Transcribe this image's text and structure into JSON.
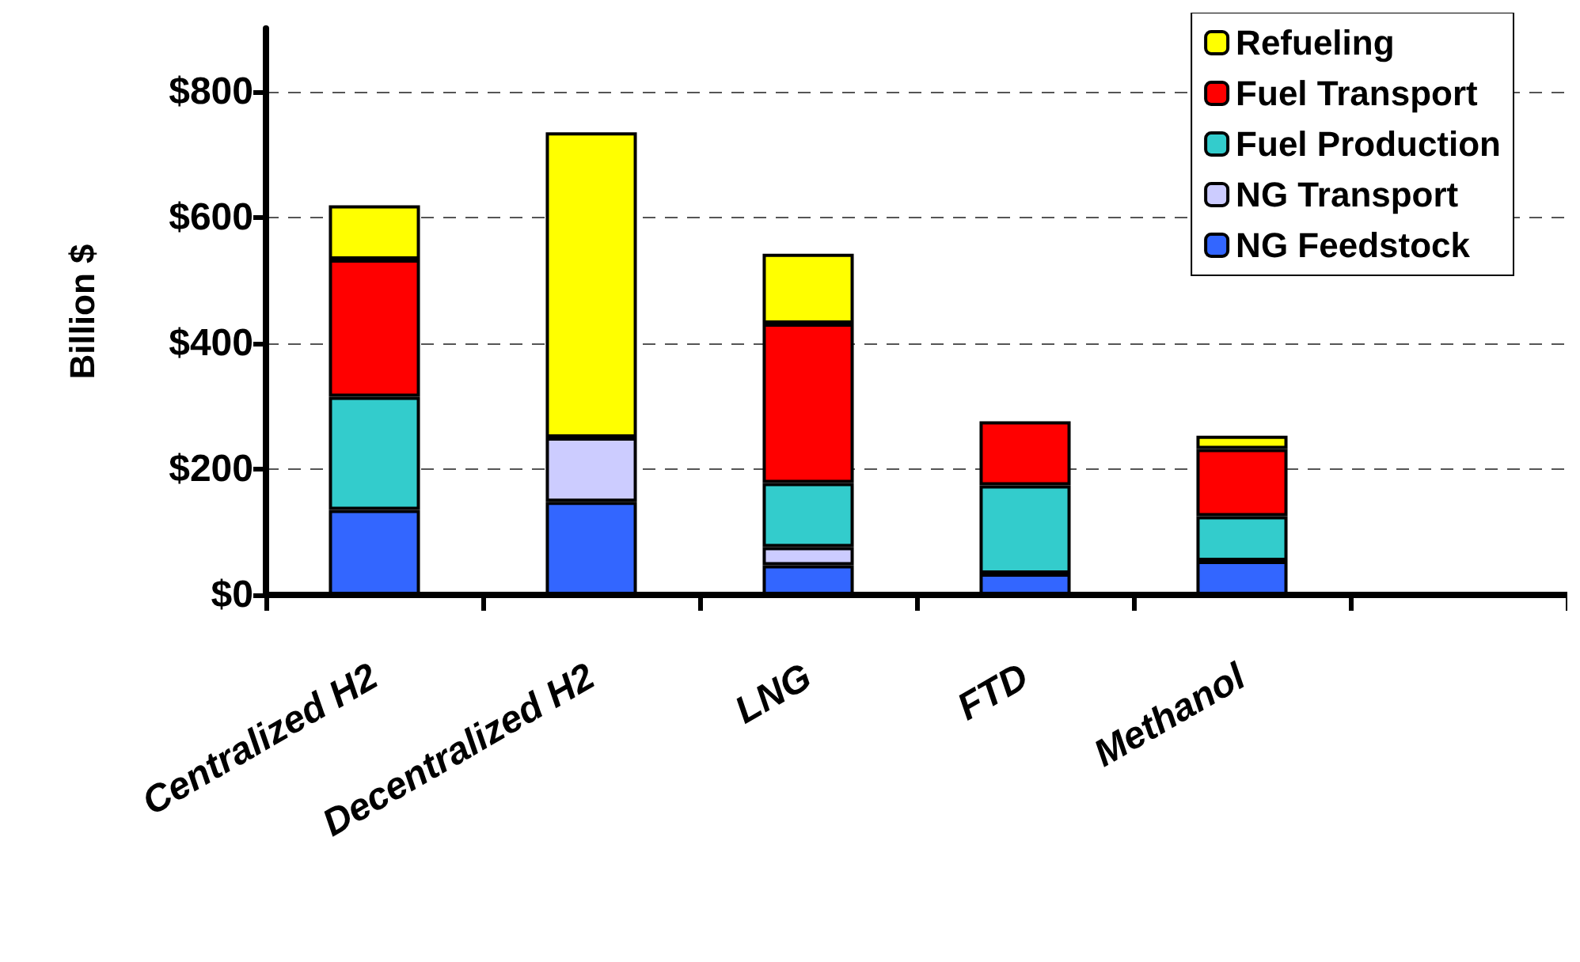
{
  "chart_data": {
    "type": "bar",
    "stacked": true,
    "ylabel": "Billion $",
    "categories": [
      "Centralized H2",
      "Decentralized H2",
      "LNG",
      "FTD",
      "Methanol",
      null
    ],
    "series": [
      {
        "name": "NG Feedstock",
        "color": "#3366ff",
        "values": [
          135,
          148,
          47,
          34,
          54,
          null
        ]
      },
      {
        "name": "NG Transport",
        "color": "#ccccff",
        "values": [
          0,
          102,
          29,
          0,
          0,
          null
        ]
      },
      {
        "name": "Fuel Production",
        "color": "#33cccc",
        "values": [
          180,
          0,
          102,
          140,
          71,
          null
        ]
      },
      {
        "name": "Fuel Transport",
        "color": "#ff0000",
        "values": [
          218,
          0,
          253,
          102,
          107,
          null
        ]
      },
      {
        "name": "Refueling",
        "color": "#ffff00",
        "values": [
          86,
          485,
          111,
          0,
          21,
          null
        ]
      }
    ],
    "ylim": [
      0,
      900
    ],
    "yticks": [
      {
        "value": 0,
        "label": "$0"
      },
      {
        "value": 200,
        "label": "$200"
      },
      {
        "value": 400,
        "label": "$400"
      },
      {
        "value": 600,
        "label": "$600"
      },
      {
        "value": 800,
        "label": "$800"
      }
    ],
    "grid": "y",
    "legend": "top right"
  }
}
